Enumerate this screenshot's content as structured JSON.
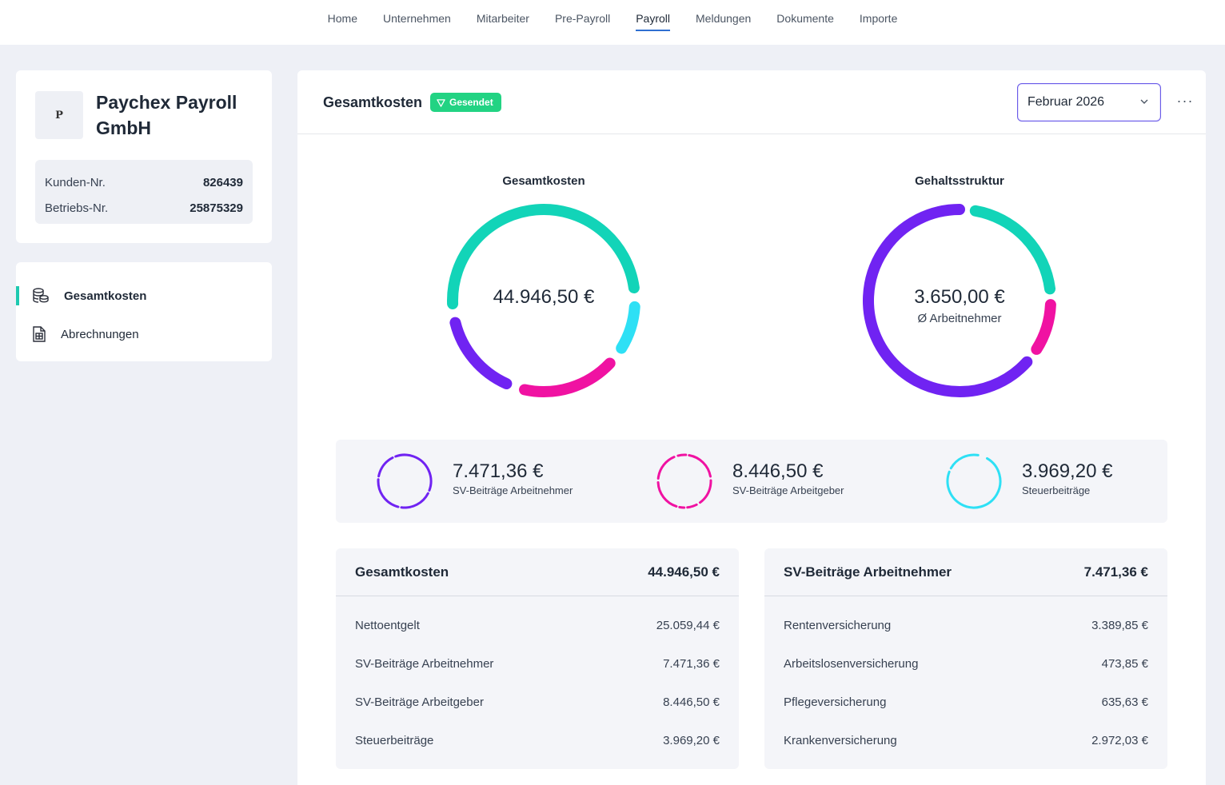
{
  "nav": {
    "items": [
      "Home",
      "Unternehmen",
      "Mitarbeiter",
      "Pre-Payroll",
      "Payroll",
      "Meldungen",
      "Dokumente",
      "Importe"
    ],
    "active": "Payroll"
  },
  "company": {
    "logo_letter": "P",
    "name": "Paychex Payroll GmbH",
    "customer_label": "Kunden-Nr.",
    "customer_number": "826439",
    "business_label": "Betriebs-Nr.",
    "business_number": "25875329"
  },
  "sidebar": {
    "items": [
      {
        "label": "Gesamtkosten",
        "icon": "coins-icon",
        "active": true
      },
      {
        "label": "Abrechnungen",
        "icon": "document-calc-icon",
        "active": false
      }
    ]
  },
  "header": {
    "title": "Gesamtkosten",
    "badge": "Gesendet",
    "month": "Februar 2026",
    "more": "···"
  },
  "colors": {
    "teal": "#12d4b8",
    "cyan": "#2ee0f5",
    "magenta": "#f012a2",
    "purple": "#7023f2",
    "badge_green": "#22d383",
    "accent_blue": "#2f6fd1"
  },
  "donut_total": {
    "title": "Gesamtkosten",
    "center_value": "44.946,50 €",
    "segments": [
      {
        "label": "Nettoentgelt",
        "value": 25059.44,
        "color": "#12d4b8"
      },
      {
        "label": "Steuerbeiträge",
        "value": 3969.2,
        "color": "#2ee0f5"
      },
      {
        "label": "SV-Beiträge Arbeitgeber",
        "value": 8446.5,
        "color": "#f012a2"
      },
      {
        "label": "SV-Beiträge Arbeitnehmer",
        "value": 7471.36,
        "color": "#7023f2"
      }
    ]
  },
  "donut_salary": {
    "title": "Gehaltsstruktur",
    "center_value": "3.650,00 €",
    "center_label": "Ø Arbeitnehmer",
    "segments": [
      {
        "value": 0.22,
        "color": "#12d4b8"
      },
      {
        "value": 0.09,
        "color": "#f012a2"
      },
      {
        "value": 0.69,
        "color": "#7023f2"
      }
    ]
  },
  "summary": [
    {
      "amount": "7.471,36 €",
      "label": "SV-Beiträge Arbeitnehmer",
      "color": "#7023f2"
    },
    {
      "amount": "8.446,50 €",
      "label": "SV-Beiträge Arbeitgeber",
      "color": "#f012a2"
    },
    {
      "amount": "3.969,20 €",
      "label": "Steuerbeiträge",
      "color": "#2ee0f5"
    }
  ],
  "table_total": {
    "title": "Gesamtkosten",
    "total": "44.946,50 €",
    "rows": [
      {
        "label": "Nettoentgelt",
        "value": "25.059,44 €"
      },
      {
        "label": "SV-Beiträge Arbeitnehmer",
        "value": "7.471,36 €"
      },
      {
        "label": "SV-Beiträge Arbeitgeber",
        "value": "8.446,50 €"
      },
      {
        "label": "Steuerbeiträge",
        "value": "3.969,20 €"
      }
    ]
  },
  "table_sv": {
    "title": "SV-Beiträge Arbeitnehmer",
    "total": "7.471,36 €",
    "rows": [
      {
        "label": "Rentenversicherung",
        "value": "3.389,85 €"
      },
      {
        "label": "Arbeitslosenversicherung",
        "value": "473,85 €"
      },
      {
        "label": "Pflegeversicherung",
        "value": "635,63 €"
      },
      {
        "label": "Krankenversicherung",
        "value": "2.972,03 €"
      }
    ]
  }
}
